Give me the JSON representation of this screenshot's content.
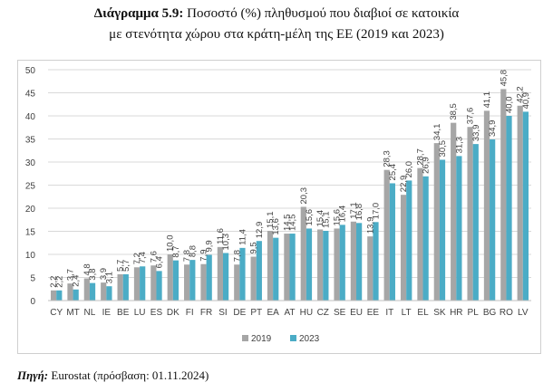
{
  "figure": {
    "number": "Διάγραμμα 5.9:",
    "title_line1": "Ποσοστό (%) πληθυσμού που διαβιοί σε κατοικία",
    "title_line2": "με στενότητα χώρου στα κράτη-μέλη της ΕΕ (2019 και 2023)"
  },
  "source": {
    "label": "Πηγή:",
    "text": "Eurostat (πρόσβαση: 01.11.2024)"
  },
  "colors": {
    "series_2019": "#a6a6a6",
    "series_2023": "#4bacc6",
    "grid": "#d9d9d9"
  },
  "chart_data": {
    "type": "bar",
    "categories": [
      "CY",
      "MT",
      "NL",
      "IE",
      "BE",
      "LU",
      "ES",
      "DK",
      "FI",
      "FR",
      "SI",
      "DE",
      "PT",
      "EA",
      "AT",
      "HU",
      "CZ",
      "SE",
      "EU",
      "EE",
      "IT",
      "LT",
      "EL",
      "SK",
      "HR",
      "PL",
      "BG",
      "RO",
      "LV"
    ],
    "series": [
      {
        "name": "2019",
        "values": [
          2.2,
          3.7,
          4.8,
          3.9,
          5.7,
          7.2,
          7.6,
          10.0,
          7.8,
          7.9,
          11.6,
          7.8,
          9.5,
          15.1,
          14.5,
          20.3,
          15.4,
          15.6,
          17.1,
          13.9,
          28.3,
          22.9,
          28.7,
          34.1,
          38.5,
          37.6,
          41.1,
          45.8,
          42.2
        ]
      },
      {
        "name": "2023",
        "values": [
          2.2,
          2.4,
          3.8,
          3.1,
          5.7,
          7.4,
          6.4,
          8.7,
          8.8,
          9.9,
          10.3,
          11.4,
          12.9,
          13.6,
          14.5,
          15.6,
          15.1,
          16.4,
          16.8,
          17.0,
          25.4,
          26.0,
          26.9,
          30.5,
          31.3,
          33.9,
          34.9,
          40.0,
          40.9
        ]
      }
    ],
    "value_labels_2019": [
      "2,2",
      "3,7",
      "4,8",
      "3,9",
      "5,7",
      "7,2",
      "7,6",
      "10,0",
      "7,8",
      "7,9",
      "11,6",
      "7,8",
      "9,5",
      "15,1",
      "14,5",
      "20,3",
      "15,4",
      "15,6",
      "17,1",
      "13,9",
      "28,3",
      "22,9",
      "28,7",
      "34,1",
      "38,5",
      "37,6",
      "41,1",
      "45,8",
      "42,2"
    ],
    "value_labels_2023": [
      "2,2",
      "2,4",
      "3,8",
      "3,1",
      "5,7",
      "7,4",
      "6,4",
      "8,7",
      "8,8",
      "9,9",
      "10,3",
      "11,4",
      "12,9",
      "13,6",
      "14,5",
      "15,6",
      "15,1",
      "16,4",
      "16,8",
      "17,0",
      "25,4",
      "26,0",
      "26,9",
      "30,5",
      "31,3",
      "33,9",
      "34,9",
      "40,0",
      "40,9"
    ],
    "yticks": [
      "0",
      "5",
      "10",
      "15",
      "20",
      "25",
      "30",
      "35",
      "40",
      "45",
      "50"
    ],
    "ylim": [
      0,
      50
    ],
    "grid": true,
    "legend_placement": "bottom-center"
  }
}
